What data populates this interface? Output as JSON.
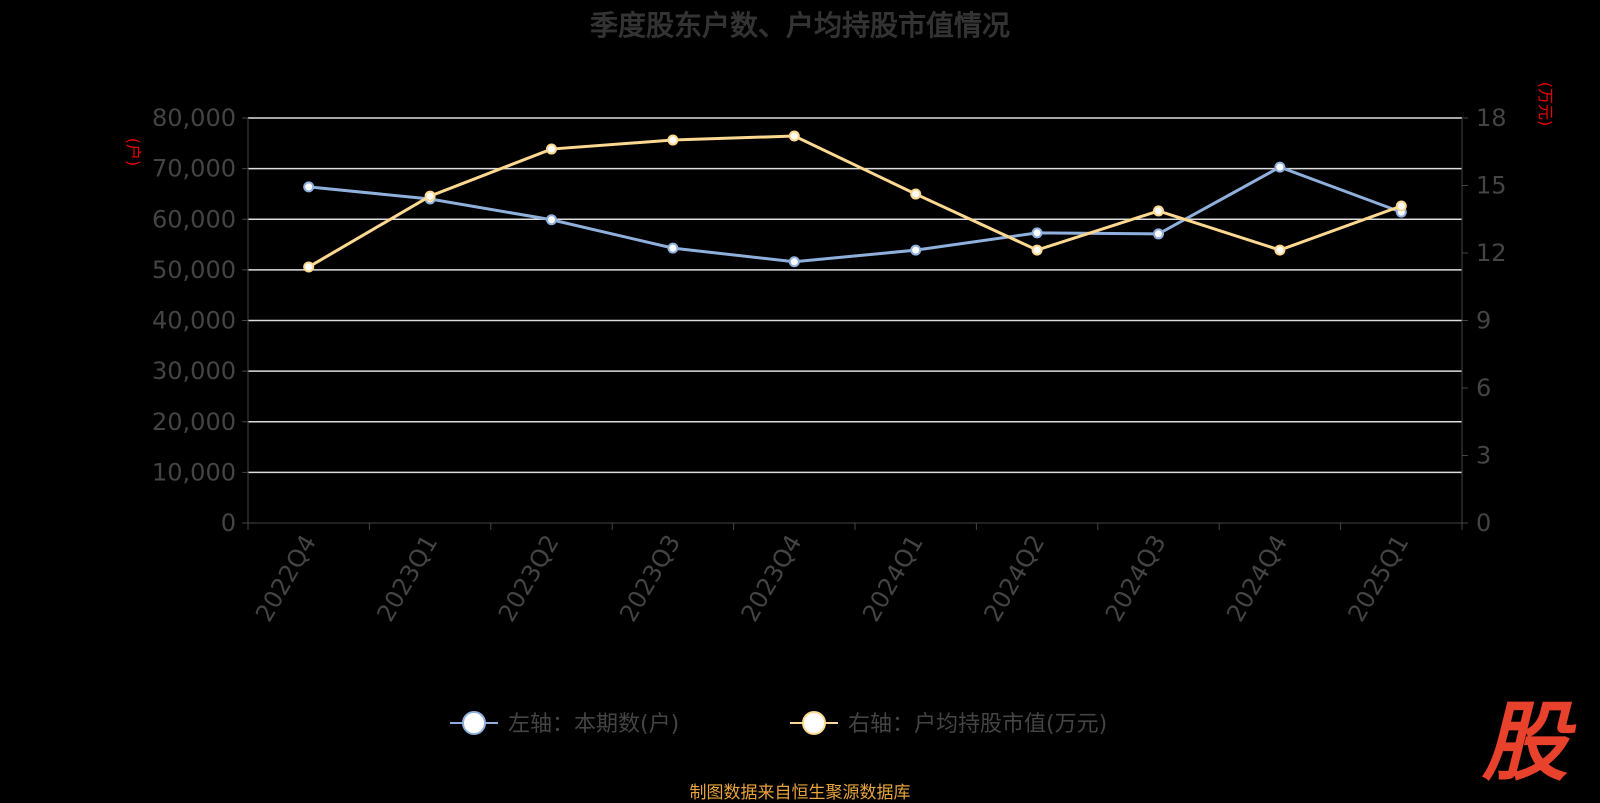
{
  "title": "季度股东户数、户均持股市值情况",
  "source": "制图数据来自恒生聚源数据库",
  "logo": "股",
  "chart_data": {
    "type": "line",
    "title": "季度股东户数、户均持股市值情况",
    "categories": [
      "2022Q4",
      "2023Q1",
      "2023Q2",
      "2023Q3",
      "2023Q4",
      "2024Q1",
      "2024Q2",
      "2024Q3",
      "2024Q4",
      "2025Q1"
    ],
    "y_left": {
      "label": "(户)",
      "range": [
        0,
        80000
      ],
      "ticks": [
        "0",
        "10,000",
        "20,000",
        "30,000",
        "40,000",
        "50,000",
        "60,000",
        "70,000",
        "80,000"
      ]
    },
    "y_right": {
      "label": "(万元)",
      "range": [
        0,
        18
      ],
      "ticks": [
        "0",
        "3",
        "6",
        "9",
        "12",
        "15",
        "18"
      ]
    },
    "grid": true,
    "legend_position": "bottom",
    "series": [
      {
        "name": "左轴：本期数(户)",
        "axis": "left",
        "color": "#8fb0dc",
        "values": [
          66400,
          64000,
          59900,
          54300,
          51600,
          53900,
          57300,
          57100,
          70300,
          61400
        ]
      },
      {
        "name": "右轴：户均持股市值(万元)",
        "axis": "right",
        "color": "#fcd891",
        "values": [
          11.38,
          14.53,
          16.62,
          17.02,
          17.2,
          14.62,
          12.13,
          13.87,
          12.13,
          14.09
        ]
      }
    ]
  }
}
